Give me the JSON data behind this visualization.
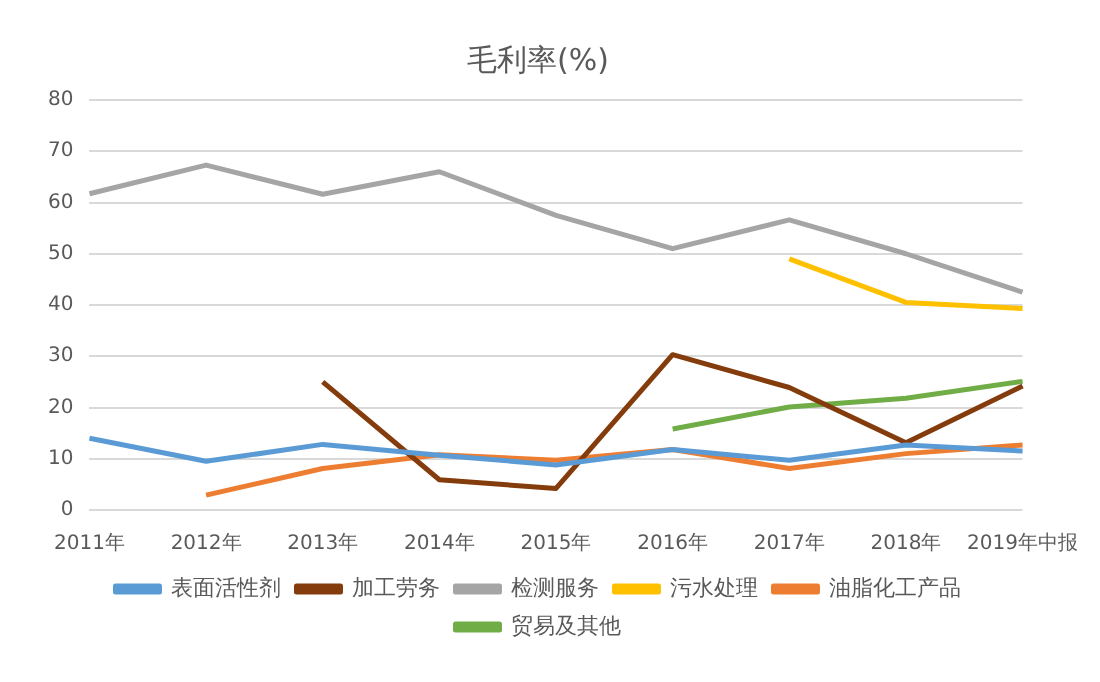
{
  "chart_data": {
    "type": "line",
    "title": "毛利率(%)",
    "categories": [
      "2011年",
      "2012年",
      "2013年",
      "2014年",
      "2015年",
      "2016年",
      "2017年",
      "2018年",
      "2019年中报"
    ],
    "series": [
      {
        "name": "表面活性剂",
        "color": "#5b9bd5",
        "values": [
          14,
          9.5,
          12.8,
          10.7,
          8.8,
          11.8,
          9.7,
          12.7,
          11.5
        ]
      },
      {
        "name": "加工劳务",
        "color": "#843c0c",
        "values": [
          null,
          null,
          25,
          5.9,
          4.2,
          30.3,
          23.9,
          13.1,
          24.2
        ]
      },
      {
        "name": "检测服务",
        "color": "#a5a5a5",
        "values": [
          61.7,
          67.3,
          61.6,
          66,
          57.5,
          51,
          56.6,
          50,
          42.5
        ]
      },
      {
        "name": "污水处理",
        "color": "#ffc000",
        "values": [
          null,
          null,
          null,
          null,
          null,
          null,
          49,
          40.5,
          39.3
        ]
      },
      {
        "name": "油脂化工产品",
        "color": "#ed7d31",
        "values": [
          null,
          2.9,
          8.1,
          10.8,
          9.7,
          11.8,
          8.1,
          11,
          12.7
        ]
      },
      {
        "name": "贸易及其他",
        "color": "#70ad47",
        "values": [
          null,
          null,
          null,
          null,
          null,
          15.8,
          20.1,
          21.8,
          25.1
        ]
      }
    ],
    "ylim": [
      0,
      80
    ],
    "yticks": [
      0,
      10,
      20,
      30,
      40,
      50,
      60,
      70,
      80
    ],
    "grid": "y",
    "legend": "bottom",
    "marker": "none",
    "line_style": "solid"
  }
}
